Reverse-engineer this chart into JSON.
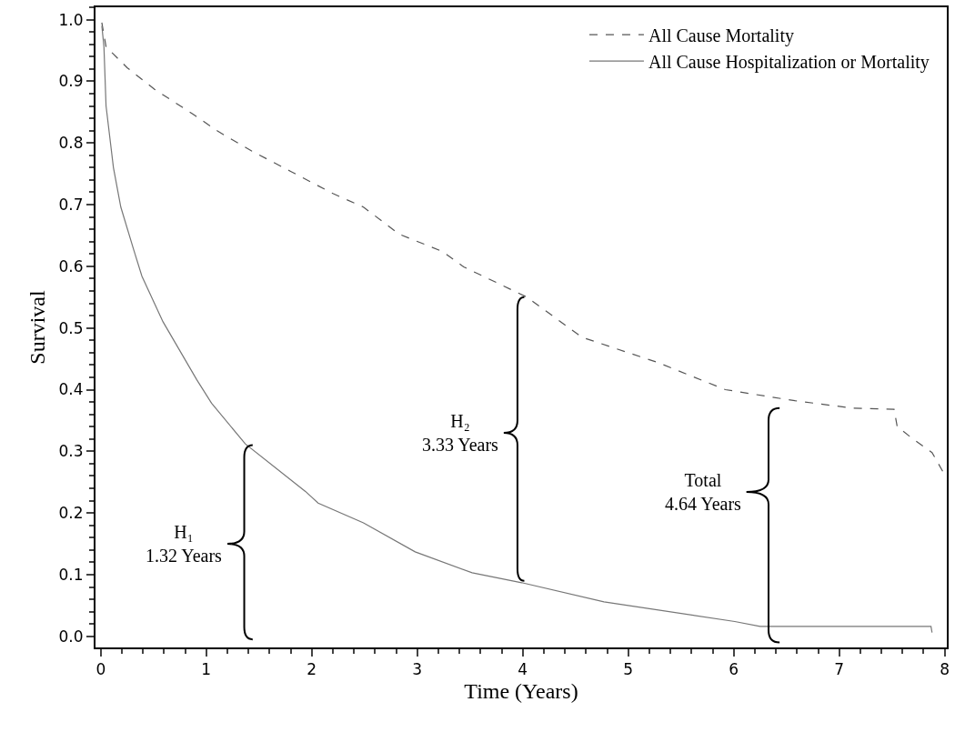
{
  "chart_data": {
    "type": "line",
    "xlabel": "Time (Years)",
    "ylabel": "Survival",
    "xlim": [
      -0.05,
      8.02
    ],
    "ylim": [
      -0.018,
      1.02
    ],
    "xticks": [
      0,
      1,
      2,
      3,
      4,
      5,
      6,
      7,
      8
    ],
    "yticks": [
      {
        "value": 0,
        "label": "0.0"
      },
      {
        "value": 0.1,
        "label": "0.1"
      },
      {
        "value": 0.2,
        "label": "0.2"
      },
      {
        "value": 0.3,
        "label": "0.3"
      },
      {
        "value": 0.4,
        "label": "0.4"
      },
      {
        "value": 0.5,
        "label": "0.5"
      },
      {
        "value": 0.6,
        "label": "0.6"
      },
      {
        "value": 0.7,
        "label": "0.7"
      },
      {
        "value": 0.8,
        "label": "0.8"
      },
      {
        "value": 0.9,
        "label": "0.9"
      },
      {
        "value": 1,
        "label": "1.0"
      }
    ],
    "legend": "top right",
    "marker": "none",
    "series": [
      {
        "name": "All Cause Mortality",
        "color": "#555555",
        "line_style": "dashed",
        "x": [
          0.01,
          0.05,
          0.25,
          0.51,
          0.88,
          1.11,
          1.43,
          1.8,
          2.2,
          2.49,
          2.83,
          3.24,
          3.44,
          4.04,
          4.56,
          5.28,
          5.92,
          6.58,
          7.13,
          7.52,
          7.55,
          7.7,
          7.88,
          7.99
        ],
        "values": [
          0.995,
          0.956,
          0.922,
          0.887,
          0.846,
          0.819,
          0.787,
          0.754,
          0.718,
          0.696,
          0.652,
          0.624,
          0.599,
          0.55,
          0.485,
          0.444,
          0.4,
          0.382,
          0.37,
          0.368,
          0.34,
          0.32,
          0.298,
          0.265
        ]
      },
      {
        "name": "All Cause Hospitalization or Mortality",
        "color": "#777777",
        "line_style": "solid",
        "x": [
          0.01,
          0.03,
          0.05,
          0.12,
          0.19,
          0.31,
          0.39,
          0.59,
          0.91,
          1.05,
          1.37,
          1.94,
          2.06,
          2.49,
          2.98,
          3.52,
          3.99,
          4.77,
          6.01,
          6.25,
          7.87,
          7.88
        ],
        "values": [
          0.99,
          0.956,
          0.86,
          0.76,
          0.696,
          0.628,
          0.584,
          0.51,
          0.416,
          0.378,
          0.312,
          0.235,
          0.216,
          0.184,
          0.137,
          0.103,
          0.087,
          0.056,
          0.024,
          0.016,
          0.016,
          0.006
        ]
      }
    ],
    "annotations": [
      "H₁\n1.32 Years",
      "H₂\n3.33 Years",
      "Total\n4.64 Years"
    ]
  }
}
